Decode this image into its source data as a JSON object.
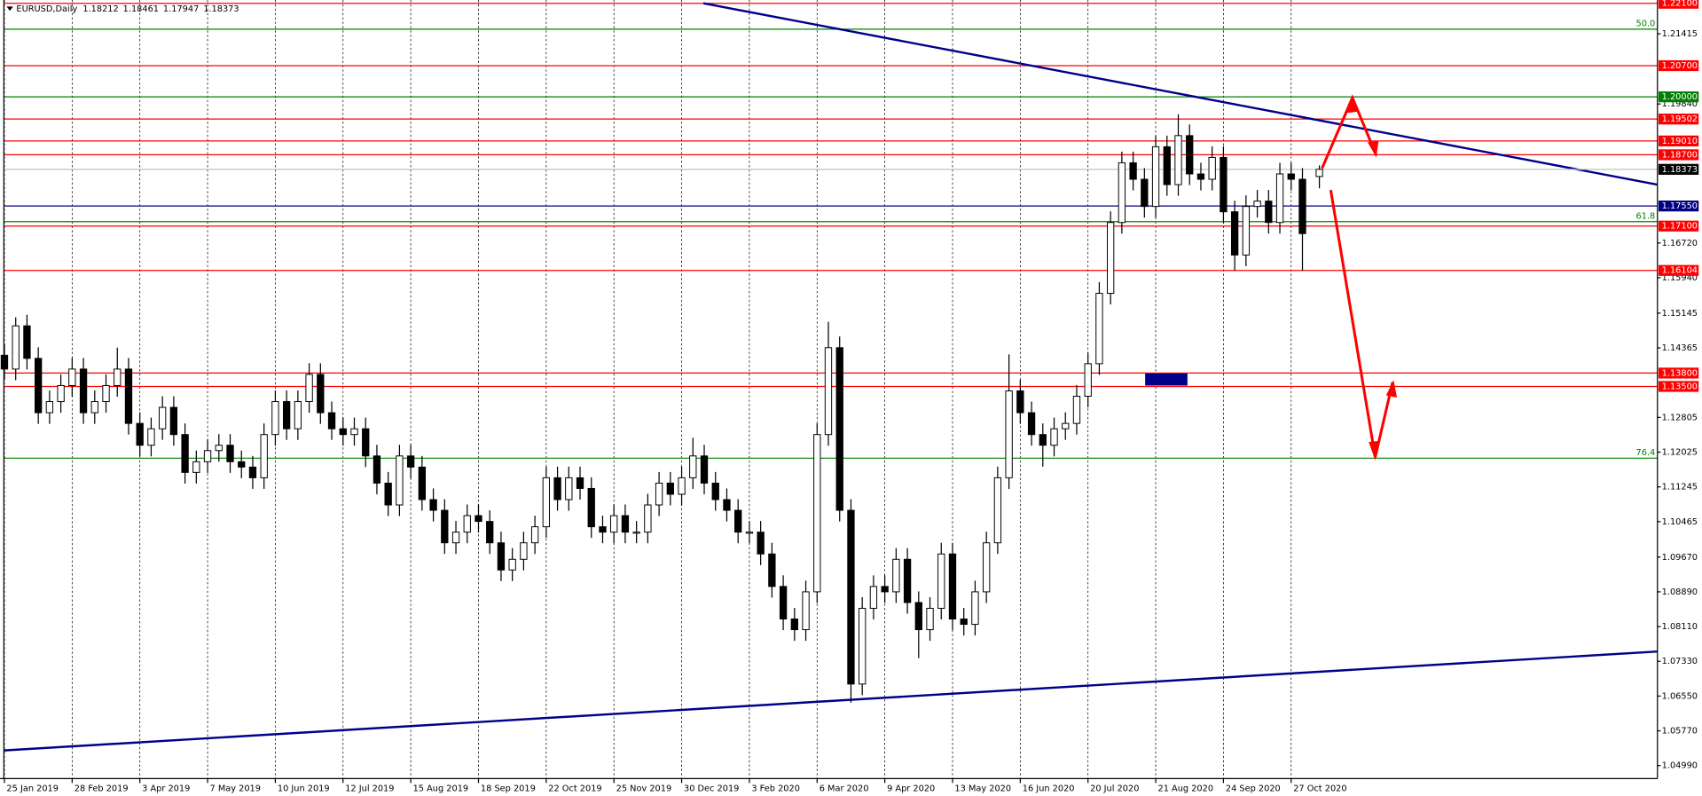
{
  "chart_data": {
    "type": "candlestick",
    "symbol": "EURUSD,Daily",
    "x": [
      0,
      4,
      8,
      12,
      16,
      20,
      24,
      28,
      32,
      36,
      40,
      44,
      48,
      52,
      56,
      60,
      64,
      68,
      72,
      76,
      80,
      84,
      88,
      92,
      96,
      100,
      104,
      108,
      112,
      116,
      120,
      124,
      128,
      132,
      136,
      140,
      144,
      148,
      152,
      156,
      160,
      164,
      168,
      172,
      176,
      180,
      184,
      188,
      192,
      196,
      200,
      204,
      208,
      212,
      216,
      220,
      224,
      228,
      232,
      236,
      240,
      244,
      248,
      252,
      256,
      260,
      264,
      268,
      272,
      276,
      280,
      284,
      288,
      292,
      296,
      300,
      304,
      308,
      312,
      316,
      320,
      324,
      328,
      332,
      336,
      340,
      344,
      348,
      352,
      356,
      360,
      364,
      368,
      372,
      376,
      380,
      384,
      388,
      392,
      396,
      400,
      404,
      408,
      412,
      416,
      420,
      424,
      428,
      432,
      436,
      440,
      444,
      448,
      452,
      456,
      460,
      466
    ],
    "open": [
      1.142,
      1.1389,
      1.1486,
      1.1413,
      1.1291,
      1.1316,
      1.1352,
      1.1389,
      1.1291,
      1.1316,
      1.1352,
      1.1389,
      1.1267,
      1.1218,
      1.1255,
      1.1303,
      1.1242,
      1.1157,
      1.1181,
      1.1206,
      1.1218,
      1.1181,
      1.1169,
      1.1145,
      1.1242,
      1.1316,
      1.1255,
      1.1316,
      1.1377,
      1.1291,
      1.1255,
      1.1242,
      1.1255,
      1.1194,
      1.1133,
      1.1084,
      1.1194,
      1.1169,
      1.1096,
      1.1072,
      1.0999,
      1.1023,
      1.106,
      1.1047,
      1.0999,
      1.0938,
      1.0962,
      1.0999,
      1.1035,
      1.1145,
      1.1096,
      1.1145,
      1.1121,
      1.1035,
      1.1023,
      1.106,
      1.1023,
      1.1023,
      1.1084,
      1.1133,
      1.1108,
      1.1145,
      1.1194,
      1.1133,
      1.1096,
      1.1072,
      1.1023,
      1.1023,
      1.0974,
      1.0901,
      1.0828,
      1.0804,
      1.0889,
      1.1242,
      1.1437,
      1.1072,
      1.0682,
      1.0852,
      1.0901,
      1.0889,
      1.0962,
      1.0865,
      1.0804,
      1.0852,
      1.0974,
      1.0828,
      1.0816,
      1.0889,
      1.0999,
      1.1145,
      1.134,
      1.1291,
      1.1242,
      1.1218,
      1.1255,
      1.1267,
      1.1328,
      1.1401,
      1.1559,
      1.1718,
      1.1852,
      1.1815,
      1.1754,
      1.1888,
      1.1803,
      1.1913,
      1.1827,
      1.1815,
      1.1864,
      1.1742,
      1.1645,
      1.1754,
      1.1766,
      1.1718,
      1.1827,
      1.1815,
      1.18212
    ],
    "high": [
      1.1445,
      1.1505,
      1.1511,
      1.1438,
      1.1341,
      1.1377,
      1.1414,
      1.1414,
      1.1341,
      1.1377,
      1.1437,
      1.1414,
      1.1292,
      1.128,
      1.1328,
      1.1328,
      1.1267,
      1.1206,
      1.1231,
      1.1243,
      1.1243,
      1.1206,
      1.1194,
      1.1267,
      1.1341,
      1.1341,
      1.1341,
      1.1402,
      1.1402,
      1.1316,
      1.128,
      1.128,
      1.128,
      1.1219,
      1.1158,
      1.1219,
      1.1219,
      1.1194,
      1.1121,
      1.1097,
      1.1048,
      1.1085,
      1.1085,
      1.1072,
      1.1024,
      1.0987,
      1.1024,
      1.106,
      1.117,
      1.117,
      1.117,
      1.117,
      1.1146,
      1.106,
      1.1085,
      1.1085,
      1.1048,
      1.1109,
      1.1158,
      1.1158,
      1.117,
      1.1235,
      1.1219,
      1.1158,
      1.1121,
      1.1097,
      1.1048,
      1.1048,
      1.0999,
      1.0926,
      1.0853,
      1.0914,
      1.1267,
      1.1495,
      1.1462,
      1.1097,
      1.0877,
      1.0926,
      1.0926,
      1.0987,
      1.0987,
      1.089,
      1.0877,
      1.0999,
      1.0999,
      1.0853,
      1.0914,
      1.1024,
      1.117,
      1.1422,
      1.1365,
      1.1316,
      1.1267,
      1.128,
      1.1292,
      1.1353,
      1.1426,
      1.1584,
      1.1743,
      1.1877,
      1.1877,
      1.184,
      1.1913,
      1.1913,
      1.1961,
      1.1938,
      1.1852,
      1.1889,
      1.1889,
      1.1767,
      1.1779,
      1.1791,
      1.1791,
      1.1852,
      1.1852,
      1.184,
      1.18461
    ],
    "low": [
      1.1364,
      1.1364,
      1.1388,
      1.1266,
      1.1266,
      1.1291,
      1.1327,
      1.1266,
      1.1266,
      1.1291,
      1.1327,
      1.1242,
      1.1193,
      1.1193,
      1.123,
      1.1217,
      1.1132,
      1.1132,
      1.1156,
      1.1181,
      1.1156,
      1.1144,
      1.112,
      1.112,
      1.1217,
      1.123,
      1.123,
      1.1291,
      1.1266,
      1.123,
      1.1217,
      1.1217,
      1.1169,
      1.1108,
      1.1059,
      1.1059,
      1.1144,
      1.1071,
      1.1047,
      1.0974,
      1.0974,
      1.0998,
      1.1022,
      1.0974,
      1.0913,
      1.0913,
      1.0937,
      1.0974,
      1.101,
      1.1071,
      1.1071,
      1.1096,
      1.101,
      1.0998,
      1.0998,
      1.0998,
      1.0998,
      1.0998,
      1.1059,
      1.1083,
      1.1083,
      1.112,
      1.1108,
      1.1071,
      1.1047,
      1.0998,
      1.0998,
      1.0949,
      1.0876,
      1.0803,
      1.0779,
      1.0779,
      1.0864,
      1.1217,
      1.1047,
      1.064,
      1.0657,
      1.0827,
      1.0864,
      1.0864,
      1.084,
      1.074,
      1.0779,
      1.0827,
      1.0803,
      1.0791,
      1.0791,
      1.0864,
      1.0974,
      1.112,
      1.1266,
      1.1217,
      1.117,
      1.1193,
      1.123,
      1.1242,
      1.1303,
      1.1376,
      1.1534,
      1.1693,
      1.179,
      1.1729,
      1.1729,
      1.1778,
      1.1778,
      1.1802,
      1.179,
      1.179,
      1.1717,
      1.161,
      1.162,
      1.1729,
      1.1693,
      1.1693,
      1.179,
      1.161,
      1.17947
    ],
    "close": [
      1.1389,
      1.1486,
      1.1413,
      1.1291,
      1.1316,
      1.1352,
      1.1389,
      1.1291,
      1.1316,
      1.1352,
      1.1389,
      1.1267,
      1.1218,
      1.1255,
      1.1303,
      1.1242,
      1.1157,
      1.1181,
      1.1206,
      1.1218,
      1.1181,
      1.1169,
      1.1145,
      1.1242,
      1.1316,
      1.1255,
      1.1316,
      1.1377,
      1.1291,
      1.1255,
      1.1242,
      1.1255,
      1.1194,
      1.1133,
      1.1084,
      1.1194,
      1.1169,
      1.1096,
      1.1072,
      1.0999,
      1.1023,
      1.106,
      1.1047,
      1.0999,
      1.0938,
      1.0962,
      1.0999,
      1.1035,
      1.1145,
      1.1096,
      1.1145,
      1.1121,
      1.1035,
      1.1023,
      1.106,
      1.1023,
      1.1023,
      1.1084,
      1.1133,
      1.1108,
      1.1145,
      1.1194,
      1.1133,
      1.1096,
      1.1072,
      1.1023,
      1.1023,
      1.0974,
      1.0901,
      1.0828,
      1.0804,
      1.0889,
      1.1242,
      1.1437,
      1.1072,
      1.0682,
      1.0852,
      1.0901,
      1.0889,
      1.0962,
      1.0865,
      1.0804,
      1.0852,
      1.0974,
      1.0828,
      1.0816,
      1.0889,
      1.0999,
      1.1145,
      1.134,
      1.1291,
      1.1242,
      1.1218,
      1.1255,
      1.1267,
      1.1328,
      1.1401,
      1.1559,
      1.1718,
      1.1852,
      1.1815,
      1.1754,
      1.1888,
      1.1803,
      1.1913,
      1.1827,
      1.1815,
      1.1864,
      1.1742,
      1.1645,
      1.1754,
      1.1766,
      1.1718,
      1.1827,
      1.1815,
      1.1693,
      1.18373
    ],
    "xlim": [
      0,
      585.8
    ],
    "ylim": [
      1.04697,
      1.22174
    ],
    "xticks": [
      {
        "value": 0,
        "label": "25 Jan 2019"
      },
      {
        "value": 24,
        "label": "28 Feb 2019"
      },
      {
        "value": 48,
        "label": "3 Apr 2019"
      },
      {
        "value": 72,
        "label": "7 May 2019"
      },
      {
        "value": 96,
        "label": "10 Jun 2019"
      },
      {
        "value": 120,
        "label": "12 Jul 2019"
      },
      {
        "value": 144,
        "label": "15 Aug 2019"
      },
      {
        "value": 168,
        "label": "18 Sep 2019"
      },
      {
        "value": 192,
        "label": "22 Oct 2019"
      },
      {
        "value": 216,
        "label": "25 Nov 2019"
      },
      {
        "value": 240,
        "label": "30 Dec 2019"
      },
      {
        "value": 264,
        "label": "3 Feb 2020"
      },
      {
        "value": 288,
        "label": "6 Mar 2020"
      },
      {
        "value": 312,
        "label": "9 Apr 2020"
      },
      {
        "value": 336,
        "label": "13 May 2020"
      },
      {
        "value": 360,
        "label": "16 Jun 2020"
      },
      {
        "value": 384,
        "label": "20 Jul 2020"
      },
      {
        "value": 408,
        "label": "21 Aug 2020"
      },
      {
        "value": 432,
        "label": "24 Sep 2020"
      },
      {
        "value": 456,
        "label": "27 Oct 2020"
      }
    ],
    "yticks": [
      1.21415,
      {
        "value": 1.1984,
        "label": "1.19840"
      },
      {
        "value": 1.1672,
        "label": "1.16720"
      },
      {
        "value": 1.1594,
        "label": "1.15940"
      },
      1.15145,
      1.14365,
      1.12805,
      1.12025,
      1.11245,
      1.10465,
      {
        "value": 1.0967,
        "label": "1.09670"
      },
      {
        "value": 1.0889,
        "label": "1.08890"
      },
      {
        "value": 1.0811,
        "label": "1.08110"
      },
      {
        "value": 1.0733,
        "label": "1.07330"
      },
      {
        "value": 1.0655,
        "label": "1.06550"
      },
      {
        "value": 1.0577,
        "label": "1.05770"
      },
      {
        "value": 1.0499,
        "label": "1.04990"
      }
    ],
    "grid": true,
    "levels": {
      "values": [
        1.221,
        1.207,
        1.2,
        1.19502,
        1.1901,
        1.187,
        1.1755,
        1.171,
        1.16104,
        1.138,
        1.135
      ],
      "value_labels": [
        "1.22100",
        "1.20700",
        "1.20000",
        "1.19502",
        "1.19010",
        "1.18700",
        "1.17550",
        "1.17100",
        "1.16104",
        "1.13800",
        "1.13500"
      ],
      "colors": [
        "#ff0000",
        "#ff0000",
        "#008000",
        "#ff0000",
        "#ff0000",
        "#ff0000",
        "#000080",
        "#ff0000",
        "#ff0000",
        "#ff0000",
        "#ff0000"
      ]
    },
    "fibonacci": {
      "ratios": [
        {
          "value": 50,
          "label": "50.0"
        },
        61.8,
        76.4
      ],
      "prices": [
        1.2152,
        1.172,
        1.1189
      ],
      "color": "#008000"
    },
    "trendlines": [
      {
        "x": [
          247.7,
          585.8
        ],
        "y": [
          1.221,
          1.1803
        ],
        "color": "#00008b"
      },
      {
        "x": [
          0,
          585.8
        ],
        "y": [
          1.0533,
          1.0755
        ],
        "color": "#00008b"
      }
    ]
  }
}
